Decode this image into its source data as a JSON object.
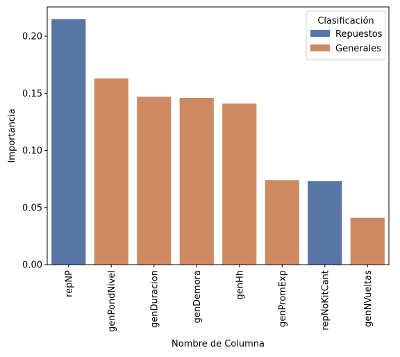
{
  "chart_data": {
    "type": "bar",
    "title": "",
    "xlabel": "Nombre de Columna",
    "ylabel": "Importancia",
    "ylim": [
      0,
      0.2256
    ],
    "yticks": [
      0.0,
      0.05,
      0.1,
      0.15,
      0.2
    ],
    "ytick_labels": [
      "0.00",
      "0.05",
      "0.10",
      "0.15",
      "0.20"
    ],
    "categories": [
      "repNP",
      "genPondNivel",
      "genDuracion",
      "genDemora",
      "genHh",
      "genPromExp",
      "repNoKitCant",
      "genNVueltas"
    ],
    "values": [
      0.215,
      0.163,
      0.147,
      0.146,
      0.141,
      0.074,
      0.073,
      0.041
    ],
    "groups": [
      "Repuestos",
      "Generales",
      "Generales",
      "Generales",
      "Generales",
      "Generales",
      "Repuestos",
      "Generales"
    ],
    "grid": false,
    "legend": {
      "title": "Clasificación",
      "placement": "top-right",
      "entries": [
        {
          "name": "Repuestos",
          "color": "#5875a6"
        },
        {
          "name": "Generales",
          "color": "#cd8a62"
        }
      ]
    }
  }
}
